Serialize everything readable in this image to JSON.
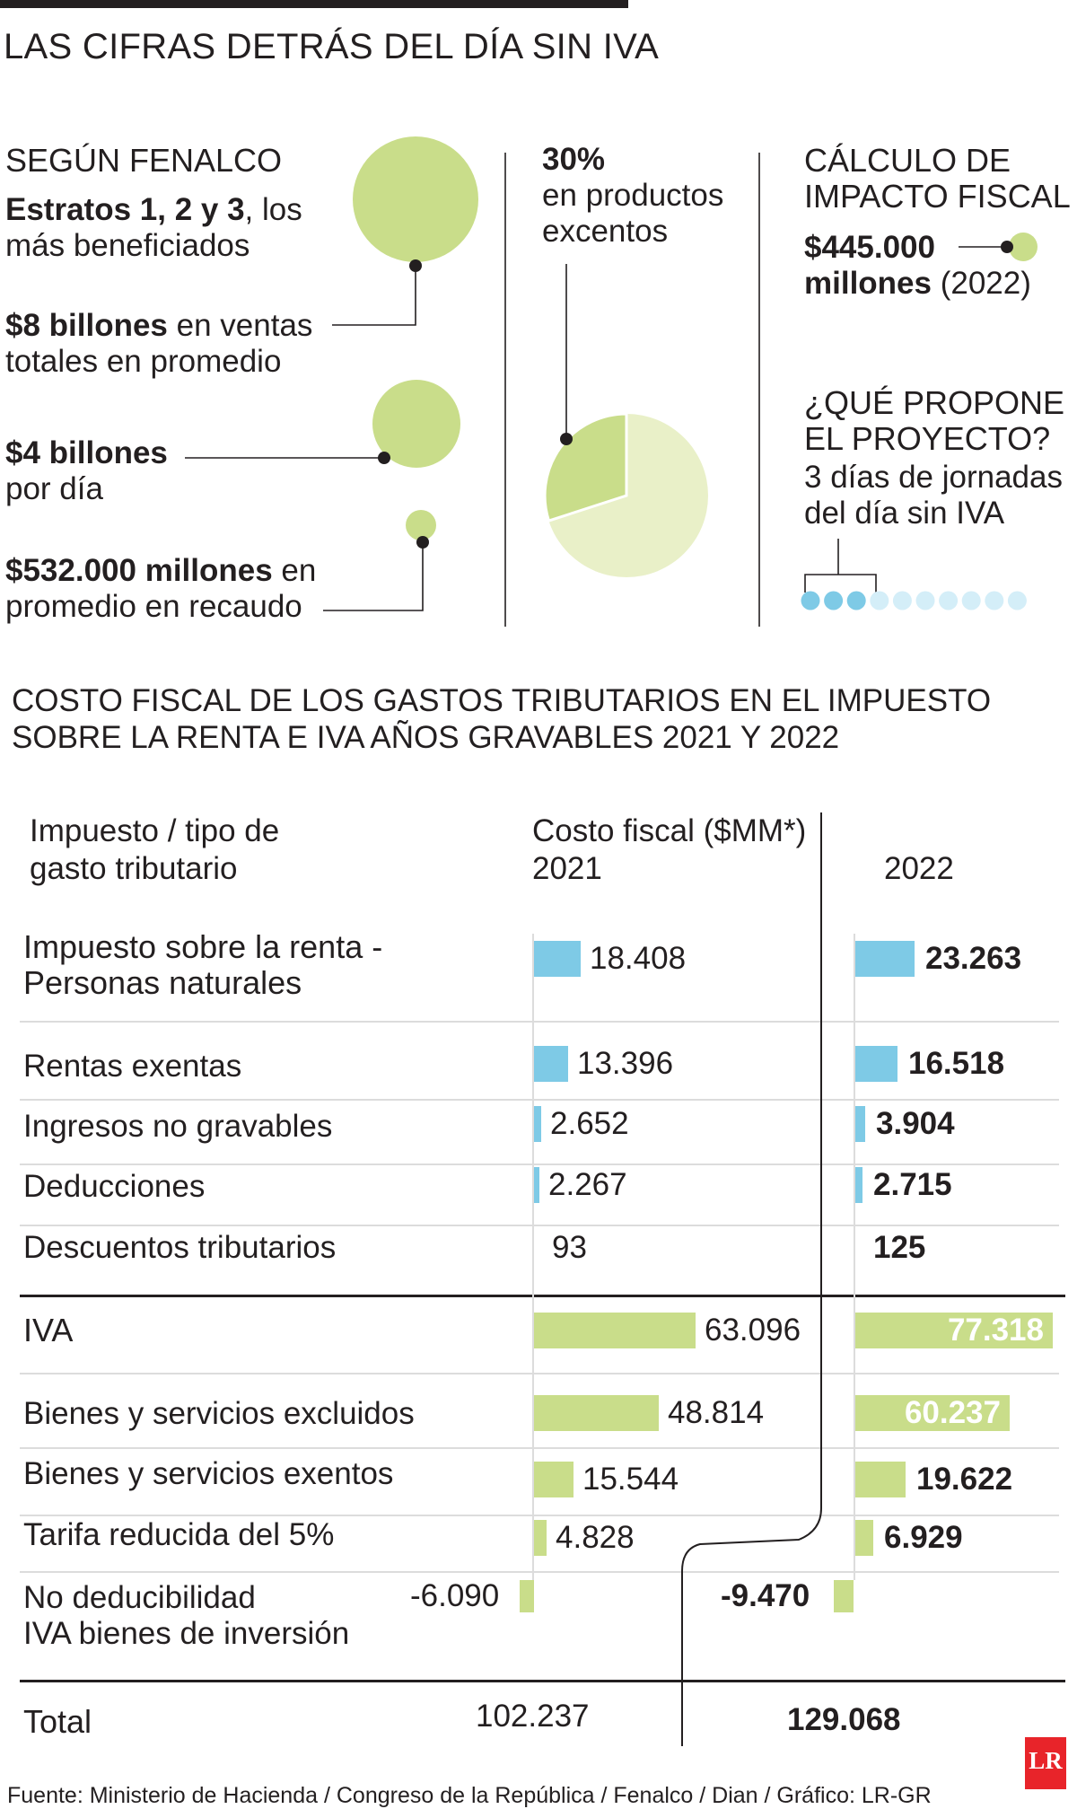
{
  "title": "LAS CIFRAS DETRÁS DEL DÍA SIN IVA",
  "col1": {
    "heading": "SEGÚN FENALCO",
    "strata_bold": "Estratos 1, 2 y 3",
    "strata_rest": ", los",
    "strata_line2": "más beneficiados",
    "sales_bold": "$8 billones",
    "sales_rest": " en ventas",
    "sales_line2": "totales en promedio",
    "daily_bold": "$4 billones",
    "daily_line2": "por día",
    "collect_bold": "$532.000 millones",
    "collect_rest": " en",
    "collect_line2": "promedio en recaudo"
  },
  "col2": {
    "pct": "30%",
    "line1": "en productos",
    "line2": "excentos",
    "pie_exempt_share": 0.3
  },
  "col3": {
    "heading1": "CÁLCULO DE",
    "heading2": "IMPACTO FISCAL",
    "amount_bold1": "$445.000",
    "amount_bold2": "millones",
    "amount_year": " (2022)",
    "proposal_heading1": "¿QUÉ PROPONE",
    "proposal_heading2": "EL PROYECTO?",
    "proposal_line1": "3 días de jornadas",
    "proposal_line2": "del día sin IVA",
    "days_total": 10,
    "days_highlighted": 3
  },
  "colors": {
    "green": "#c9dd8a",
    "green_light": "#e9f0c8",
    "blue": "#7ecae6",
    "blue_light": "#d4eef8",
    "text": "#231f20"
  },
  "table": {
    "title_line1": "COSTO FISCAL DE LOS GASTOS TRIBUTARIOS EN EL IMPUESTO",
    "title_line2": "SOBRE LA RENTA E IVA AÑOS GRAVABLES 2021 Y 2022",
    "col_label1": "Impuesto / tipo de",
    "col_label2": "gasto tributario",
    "col_cost1": "Costo fiscal ($MM*)",
    "col_2021": "2021",
    "col_2022": "2022",
    "total_label": "Total",
    "total_2021": "102.237",
    "total_2022": "129.068"
  },
  "chart_data": {
    "type": "bar",
    "title": "COSTO FISCAL DE LOS GASTOS TRIBUTARIOS EN EL IMPUESTO SOBRE LA RENTA E IVA AÑOS GRAVABLES 2021 Y 2022",
    "ylabel": "Costo fiscal ($MM*)",
    "categories": [
      "Impuesto sobre la renta - Personas naturales",
      "Rentas exentas",
      "Ingresos no gravables",
      "Deducciones",
      "Descuentos tributarios",
      "IVA",
      "Bienes y servicios excluidos",
      "Bienes y servicios exentos",
      "Tarifa reducida del 5%",
      "No deducibilidad IVA bienes de inversión"
    ],
    "series": [
      {
        "name": "2021",
        "values": [
          18408,
          13396,
          2652,
          2267,
          93,
          63096,
          48814,
          15544,
          4828,
          -6090
        ]
      },
      {
        "name": "2022",
        "values": [
          23263,
          16518,
          3904,
          2715,
          125,
          77318,
          60237,
          19622,
          6929,
          -9470
        ]
      }
    ],
    "totals": {
      "2021": 102237,
      "2022": 129068
    },
    "grid": false
  },
  "rows": [
    {
      "label1": "Impuesto sobre la renta -",
      "label2": "Personas naturales",
      "v2021": "18.408",
      "v2022": "23.263",
      "color": "blue"
    },
    {
      "label1": "Rentas exentas",
      "v2021": "13.396",
      "v2022": "16.518",
      "color": "blue"
    },
    {
      "label1": "Ingresos no gravables",
      "v2021": "2.652",
      "v2022": "3.904",
      "color": "blue"
    },
    {
      "label1": "Deducciones",
      "v2021": "2.267",
      "v2022": "2.715",
      "color": "blue"
    },
    {
      "label1": "Descuentos tributarios",
      "v2021": "93",
      "v2022": "125",
      "color": "blue"
    },
    {
      "label1": "IVA",
      "v2021": "63.096",
      "v2022": "77.318",
      "color": "green"
    },
    {
      "label1": "Bienes y servicios excluidos",
      "v2021": "48.814",
      "v2022": "60.237",
      "color": "green"
    },
    {
      "label1": "Bienes y servicios exentos",
      "v2021": "15.544",
      "v2022": "19.622",
      "color": "green"
    },
    {
      "label1": "Tarifa reducida del 5%",
      "v2021": "4.828",
      "v2022": "6.929",
      "color": "green"
    },
    {
      "label1": "No deducibilidad",
      "label2": "IVA bienes de inversión",
      "v2021": "-6.090",
      "v2022": "-9.470",
      "color": "green"
    }
  ],
  "source": "Fuente: Ministerio de Hacienda / Congreso de la República / Fenalco / Dian / Gráfico: LR-GR",
  "logo": "LR"
}
